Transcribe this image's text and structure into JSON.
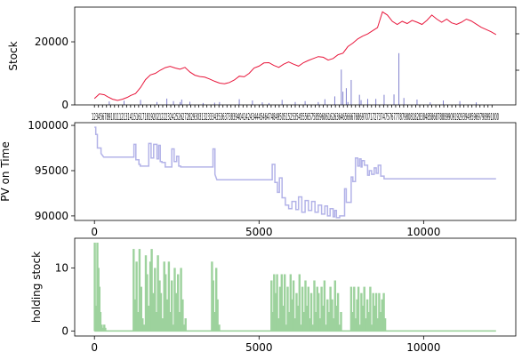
{
  "chart_data": [
    {
      "type": "line",
      "ylabel": "Stock",
      "xlabel": "",
      "ylim": [
        0,
        31000
      ],
      "xlim": [
        -600,
        12800
      ],
      "y_ticks": [
        "0",
        "20000"
      ],
      "x_tick_labels_overlapping": "1234567891011121314151617181920212223242526272829303132333435363738394041424344454647484950515253545556575859606162636465666768697071727374757677787980818283848586878889909192939495969798991000",
      "grid": false,
      "legend": "none",
      "series": [
        {
          "color": "#e8163b",
          "x": [
            0,
            150,
            300,
            400,
            550,
            700,
            850,
            1000,
            1100,
            1250,
            1400,
            1550,
            1700,
            1850,
            2000,
            2150,
            2300,
            2450,
            2600,
            2750,
            2900,
            3050,
            3200,
            3350,
            3500,
            3650,
            3800,
            3950,
            4100,
            4250,
            4400,
            4550,
            4700,
            4850,
            5000,
            5150,
            5300,
            5450,
            5600,
            5750,
            5900,
            6050,
            6200,
            6350,
            6500,
            6650,
            6800,
            6950,
            7100,
            7250,
            7400,
            7550,
            7700,
            7850,
            8000,
            8150,
            8300,
            8450,
            8600,
            8750,
            8900,
            9050,
            9200,
            9350,
            9500,
            9650,
            9800,
            9950,
            10100,
            10250,
            10400,
            10550,
            10700,
            10850,
            11000,
            11150,
            11300,
            11450,
            11600,
            11750,
            11900,
            12050,
            12200
          ],
          "values": [
            2000,
            3500,
            3200,
            2600,
            1800,
            1400,
            1800,
            2400,
            3000,
            3600,
            5500,
            8000,
            9500,
            10000,
            11000,
            11800,
            12200,
            11700,
            11300,
            11900,
            10400,
            9400,
            9000,
            8800,
            8200,
            7500,
            6900,
            6700,
            7100,
            7900,
            9100,
            8900,
            10000,
            11700,
            12300,
            13300,
            13400,
            12500,
            11900,
            12900,
            13600,
            12900,
            12300,
            13400,
            14100,
            14700,
            15300,
            15100,
            14200,
            14700,
            15900,
            16400,
            18500,
            19600,
            20900,
            21800,
            22500,
            23500,
            24500,
            29500,
            28500,
            26500,
            25500,
            26500,
            25800,
            26800,
            26200,
            25500,
            26800,
            28500,
            27200,
            26200,
            27200,
            26000,
            25500,
            26200,
            27200,
            26600,
            25600,
            24600,
            23900,
            23200,
            22300
          ]
        }
      ],
      "volume_bars": {
        "color": "#7373c9",
        "x": [
          450,
          900,
          1400,
          1900,
          2200,
          2400,
          2600,
          2650,
          2900,
          3300,
          3650,
          3800,
          4400,
          4800,
          5100,
          5300,
          5700,
          6100,
          6400,
          6800,
          7000,
          7300,
          7500,
          7550,
          7650,
          7700,
          7800,
          8050,
          8100,
          8300,
          8550,
          8800,
          9100,
          9250,
          9400,
          9800,
          10200,
          10600,
          11100,
          11600
        ],
        "values": [
          1100,
          1300,
          1600,
          900,
          2000,
          1200,
          900,
          1700,
          1000,
          600,
          700,
          900,
          1800,
          1400,
          800,
          600,
          1600,
          900,
          1200,
          900,
          1800,
          2700,
          11200,
          4200,
          5300,
          900,
          7900,
          3200,
          1500,
          1900,
          1900,
          3200,
          3300,
          16400,
          2200,
          1700,
          800,
          1400,
          1200,
          800
        ]
      }
    },
    {
      "type": "line",
      "ylabel": "PV on Time",
      "xlabel": "",
      "ylim": [
        89500,
        100300
      ],
      "xlim": [
        -600,
        12800
      ],
      "y_ticks": [
        "90000",
        "95000",
        "100000"
      ],
      "x_ticks": [
        "0",
        "5000",
        "10000"
      ],
      "grid": false,
      "legend": "none",
      "series": [
        {
          "color": "#b3b3e8",
          "x": [
            0,
            40,
            40,
            90,
            90,
            200,
            200,
            280,
            1200,
            1200,
            1260,
            1260,
            1350,
            1350,
            1390,
            1390,
            1480,
            1650,
            1650,
            1720,
            1720,
            1800,
            1800,
            1900,
            1900,
            1950,
            1950,
            2000,
            2000,
            2050,
            2050,
            2150,
            2150,
            2350,
            2350,
            2420,
            2420,
            2500,
            2500,
            2560,
            2560,
            2620,
            2620,
            2700,
            3600,
            3600,
            3660,
            3660,
            3720,
            5400,
            5400,
            5480,
            5480,
            5560,
            5560,
            5620,
            5620,
            5700,
            5700,
            5800,
            5800,
            5900,
            5900,
            6000,
            6000,
            6120,
            6120,
            6200,
            6200,
            6300,
            6300,
            6400,
            6400,
            6500,
            6500,
            6600,
            6600,
            6700,
            6700,
            6800,
            6800,
            6900,
            6900,
            7000,
            7000,
            7080,
            7080,
            7160,
            7160,
            7250,
            7250,
            7300,
            7300,
            7350,
            7350,
            7450,
            7450,
            7500,
            7600,
            7600,
            7650,
            7650,
            7700,
            7800,
            7800,
            7850,
            7850,
            7930,
            7930,
            8000,
            8000,
            8050,
            8050,
            8100,
            8100,
            8130,
            8130,
            8200,
            8200,
            8300,
            8300,
            8350,
            8350,
            8420,
            8420,
            8500,
            8500,
            8560,
            8560,
            8620,
            8620,
            8700,
            8700,
            8800,
            8800,
            8900,
            10000,
            12200
          ],
          "values": [
            99800,
            99800,
            99000,
            99000,
            97500,
            97500,
            96900,
            96500,
            96500,
            97900,
            97900,
            96200,
            96200,
            95700,
            95700,
            95500,
            95500,
            95500,
            98000,
            98000,
            96400,
            96400,
            97900,
            97900,
            96300,
            96300,
            97800,
            97800,
            96000,
            96000,
            95900,
            95900,
            95400,
            95400,
            97400,
            97400,
            96000,
            96000,
            96600,
            96600,
            95500,
            95500,
            95400,
            95400,
            95400,
            97400,
            97400,
            94600,
            94000,
            94000,
            95700,
            95700,
            93700,
            93700,
            92600,
            92600,
            94200,
            94200,
            92000,
            92000,
            91200,
            91200,
            90800,
            90800,
            91600,
            91600,
            90700,
            90700,
            92100,
            92100,
            90400,
            90400,
            91700,
            91700,
            90600,
            90600,
            91600,
            91600,
            90400,
            90400,
            91200,
            91200,
            90200,
            90200,
            91100,
            91100,
            90000,
            90000,
            90800,
            90800,
            89900,
            89900,
            90600,
            90600,
            89800,
            89800,
            90000,
            90000,
            90000,
            93000,
            93000,
            91500,
            91500,
            91500,
            94300,
            94300,
            93800,
            93800,
            96400,
            96400,
            95500,
            95500,
            96300,
            96300,
            95400,
            95400,
            96100,
            96100,
            95600,
            95600,
            94500,
            94500,
            95000,
            95000,
            94600,
            94600,
            95300,
            95300,
            94700,
            94700,
            95600,
            95600,
            94400,
            94400,
            94100,
            94100,
            94100,
            94100
          ]
        }
      ]
    },
    {
      "type": "bar",
      "ylabel": "holding stock",
      "xlabel": "",
      "ylim": [
        -0.8,
        14.7
      ],
      "xlim": [
        -600,
        12800
      ],
      "y_ticks": [
        "0",
        "10"
      ],
      "x_ticks": [
        "0",
        "5000",
        "10000"
      ],
      "grid": false,
      "legend": "none",
      "series": [
        {
          "color": "#9dd29d",
          "x": [
            10,
            50,
            90,
            120,
            150,
            180,
            220,
            260,
            300,
            330,
            1190,
            1230,
            1280,
            1320,
            1370,
            1420,
            1460,
            1510,
            1560,
            1600,
            1650,
            1700,
            1740,
            1790,
            1840,
            1880,
            1930,
            1980,
            2020,
            2070,
            2120,
            2160,
            2210,
            2260,
            2300,
            2350,
            2400,
            2440,
            2490,
            2540,
            2580,
            2630,
            2680,
            2720,
            2770,
            3570,
            3610,
            3650,
            3700,
            3740,
            3790,
            5380,
            5420,
            5460,
            5510,
            5550,
            5600,
            5640,
            5690,
            5730,
            5780,
            5820,
            5870,
            5910,
            5960,
            6000,
            6050,
            6090,
            6140,
            6180,
            6230,
            6270,
            6320,
            6360,
            6410,
            6450,
            6500,
            6540,
            6590,
            6630,
            6680,
            6720,
            6770,
            6810,
            6860,
            6900,
            6950,
            6990,
            7040,
            7080,
            7130,
            7170,
            7220,
            7260,
            7310,
            7350,
            7400,
            7440,
            7490,
            7800,
            7840,
            7890,
            7930,
            7980,
            8020,
            8070,
            8110,
            8160,
            8200,
            8250,
            8290,
            8340,
            8380,
            8430,
            8470,
            8520,
            8560,
            8610,
            8650,
            8700,
            8740,
            8790,
            8830
          ],
          "values": [
            14,
            4,
            14,
            10,
            7,
            3,
            1,
            0.5,
            1,
            0.5,
            13,
            5,
            11,
            3,
            13,
            7,
            2,
            1,
            12,
            9,
            4,
            11,
            13,
            6,
            10,
            3,
            12,
            8,
            6,
            2,
            11,
            9,
            5,
            11,
            3,
            8,
            1,
            10,
            6,
            9,
            3,
            10,
            5,
            1,
            2,
            11,
            8,
            3,
            10,
            5,
            1,
            8,
            3,
            9,
            6,
            9,
            2,
            7,
            9,
            4,
            9,
            1,
            7,
            3,
            9,
            5,
            8,
            2,
            6,
            4,
            9,
            1,
            7,
            3,
            8,
            4,
            7,
            2,
            6,
            1,
            8,
            3,
            7,
            6,
            2,
            7,
            4,
            8,
            1,
            5,
            3,
            7,
            5,
            2,
            8,
            4,
            6,
            1,
            3,
            7,
            3,
            7,
            2,
            5,
            7,
            1,
            6,
            4,
            7,
            2,
            5,
            3,
            7,
            1,
            6,
            4,
            6,
            2,
            6,
            3,
            5,
            6,
            2
          ]
        }
      ]
    }
  ]
}
